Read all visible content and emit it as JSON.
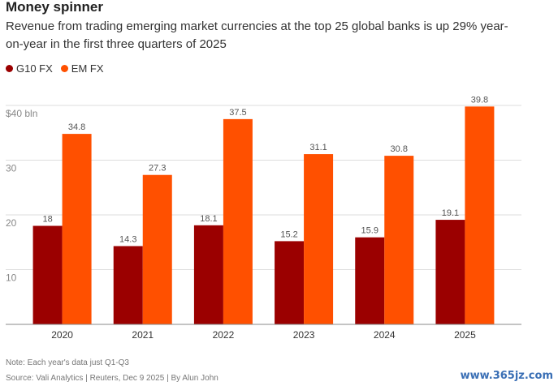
{
  "title": "Money spinner",
  "subtitle": "Revenue from trading emerging market currencies at the top 25 global banks is up 29% year-on-year in the first three quarters of 2025",
  "note": "Note: Each year's data just Q1-Q3",
  "source": "Source: Vali Analytics | Reuters, Dec 9 2025 | By Alun John",
  "watermark": "www.365jz.com",
  "colors": {
    "g10": "#9b0000",
    "em": "#ff5000",
    "grid": "#dddddd",
    "axis": "#888888"
  },
  "chart_data": {
    "type": "bar",
    "categories": [
      "2020",
      "2021",
      "2022",
      "2023",
      "2024",
      "2025"
    ],
    "series": [
      {
        "name": "G10 FX",
        "values": [
          18,
          14.3,
          18.1,
          15.2,
          15.9,
          19.1
        ],
        "labels": [
          "18",
          "14.3",
          "18.1",
          "15.2",
          "15.9",
          "19.1"
        ]
      },
      {
        "name": "EM FX",
        "values": [
          34.8,
          27.3,
          37.5,
          31.1,
          30.8,
          39.8
        ],
        "labels": [
          "34.8",
          "27.3",
          "37.5",
          "31.1",
          "30.8",
          "39.8"
        ]
      }
    ],
    "yticks": [
      {
        "value": 10,
        "label": "10"
      },
      {
        "value": 20,
        "label": "20"
      },
      {
        "value": 30,
        "label": "30"
      },
      {
        "value": 40,
        "label": "$40 bln"
      }
    ],
    "ylim": [
      0,
      40
    ],
    "grid": true,
    "legend": "top-left"
  }
}
